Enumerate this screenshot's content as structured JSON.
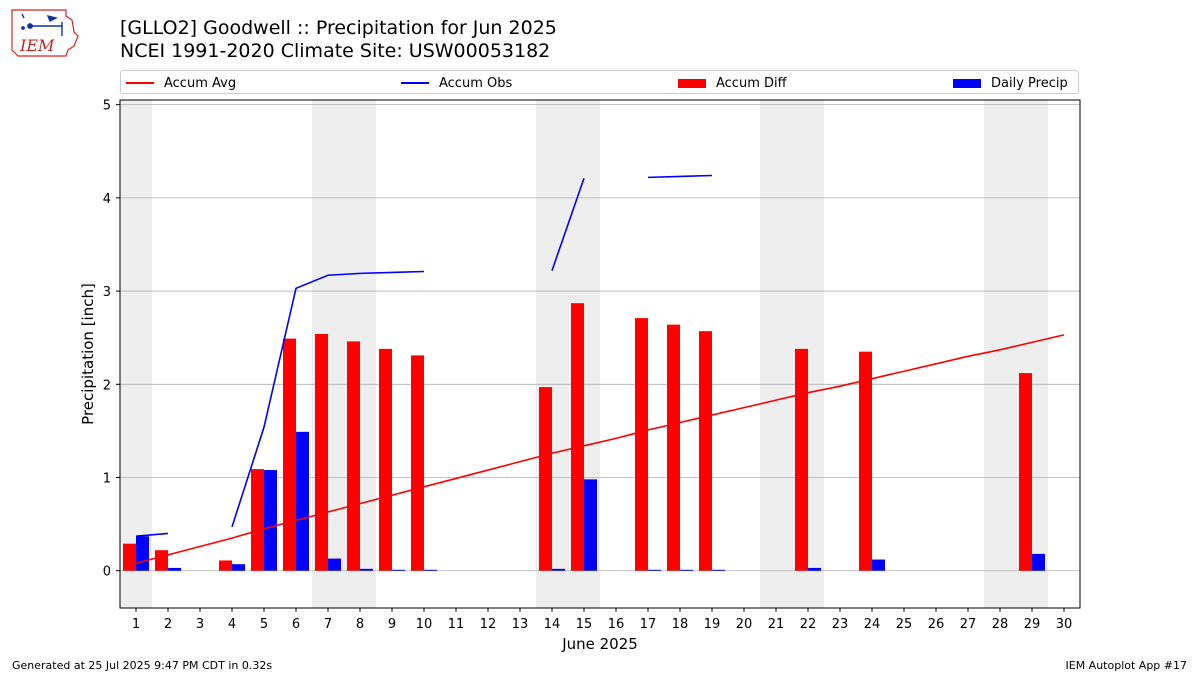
{
  "header": {
    "title_line1": "[GLLO2] Goodwell :: Precipitation for Jun 2025",
    "title_line2": "NCEI 1991-2020 Climate Site: USW00053182"
  },
  "logo": {
    "text": "IEM"
  },
  "legend": {
    "items": [
      {
        "label": "Accum Avg",
        "kind": "line",
        "color": "#ff0000"
      },
      {
        "label": "Accum Obs",
        "kind": "line",
        "color": "#0000ff"
      },
      {
        "label": "Accum Diff",
        "kind": "bar",
        "color": "#ff0000"
      },
      {
        "label": "Daily Precip",
        "kind": "bar",
        "color": "#0000ff"
      }
    ]
  },
  "footer": {
    "left": "Generated at 25 Jul 2025 9:47 PM CDT in 0.32s",
    "right": "IEM Autoplot App #17"
  },
  "chart_data": {
    "type": "bar",
    "xlabel": "June 2025",
    "ylabel": "Precipitation [inch]",
    "x": [
      1,
      2,
      3,
      4,
      5,
      6,
      7,
      8,
      9,
      10,
      11,
      12,
      13,
      14,
      15,
      16,
      17,
      18,
      19,
      20,
      21,
      22,
      23,
      24,
      25,
      26,
      27,
      28,
      29,
      30
    ],
    "ylim": [
      -0.4,
      5.05
    ],
    "yticks": [
      0,
      1,
      2,
      3,
      4,
      5
    ],
    "grid": "horizontal",
    "legend_position": "top",
    "weekend_shading_days": [
      1,
      7,
      8,
      14,
      15,
      21,
      22,
      28,
      29
    ],
    "series": [
      {
        "name": "Accum Avg",
        "kind": "line",
        "color": "#ff0000",
        "values": [
          0.08,
          0.17,
          0.26,
          0.35,
          0.45,
          0.54,
          0.63,
          0.72,
          0.81,
          0.9,
          0.99,
          1.08,
          1.17,
          1.26,
          1.34,
          1.42,
          1.51,
          1.59,
          1.67,
          1.75,
          1.83,
          1.91,
          1.98,
          2.06,
          2.14,
          2.22,
          2.3,
          2.37,
          2.45,
          2.53
        ]
      },
      {
        "name": "Accum Obs",
        "kind": "line",
        "color": "#0000ff",
        "values": [
          0.37,
          0.4,
          null,
          0.47,
          1.54,
          3.03,
          3.17,
          3.19,
          3.2,
          3.21,
          null,
          null,
          null,
          3.22,
          4.21,
          null,
          4.22,
          4.23,
          4.24,
          null,
          null,
          null,
          null,
          null,
          null,
          null,
          null,
          null,
          null,
          null
        ]
      },
      {
        "name": "Accum Diff",
        "kind": "bar",
        "color": "#ff0000",
        "values": [
          0.29,
          0.22,
          null,
          0.11,
          1.09,
          2.49,
          2.54,
          2.46,
          2.38,
          2.31,
          null,
          null,
          null,
          1.97,
          2.87,
          null,
          2.71,
          2.64,
          2.57,
          null,
          null,
          2.38,
          null,
          2.35,
          null,
          null,
          null,
          null,
          2.12,
          null
        ]
      },
      {
        "name": "Daily Precip",
        "kind": "bar",
        "color": "#0000ff",
        "values": [
          0.37,
          0.03,
          0,
          0.07,
          1.08,
          1.49,
          0.13,
          0.02,
          0.01,
          0.01,
          0,
          0,
          0,
          0.02,
          0.98,
          0,
          0.01,
          0.01,
          0.01,
          0,
          0,
          0.03,
          0,
          0.12,
          0,
          0,
          0,
          0,
          0.18,
          0
        ]
      }
    ]
  }
}
